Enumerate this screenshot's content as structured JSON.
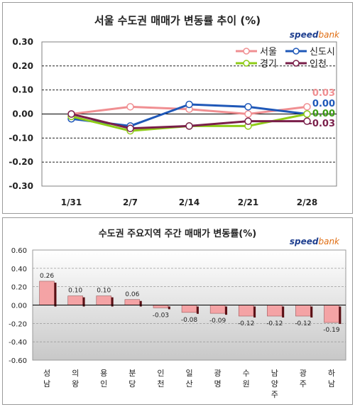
{
  "chart_data": [
    {
      "type": "line",
      "title": "서울 수도권 매매가 변동률 추이 (%)",
      "categories": [
        "1/31",
        "2/7",
        "2/14",
        "2/21",
        "2/28"
      ],
      "ylim": [
        -0.3,
        0.3
      ],
      "yticks": [
        "0.30",
        "0.20",
        "0.10",
        "0.00",
        "-0.10",
        "-0.20",
        "-0.30"
      ],
      "grid": true,
      "legend_position": "top-right",
      "series": [
        {
          "name": "서울",
          "color": "#f08f92",
          "values": [
            0.0,
            0.03,
            0.02,
            0.0,
            0.03
          ]
        },
        {
          "name": "신도시",
          "color": "#1f58b8",
          "values": [
            -0.02,
            -0.05,
            0.04,
            0.03,
            0.0
          ]
        },
        {
          "name": "경기",
          "color": "#8fcc18",
          "values": [
            -0.01,
            -0.07,
            -0.05,
            -0.05,
            0.0
          ]
        },
        {
          "name": "인천",
          "color": "#7a1f4a",
          "values": [
            0.0,
            -0.06,
            -0.05,
            -0.03,
            -0.03
          ]
        }
      ],
      "end_labels": [
        {
          "text": "0.03",
          "color": "#f08f92"
        },
        {
          "text": "0.00",
          "color": "#1f58b8"
        },
        {
          "text": "0.00",
          "color": "#3a9a10"
        },
        {
          "text": "-0.03",
          "color": "#7a1f4a"
        }
      ]
    },
    {
      "type": "bar",
      "title": "수도권 주요지역 주간 매매가 변동률(%)",
      "categories": [
        "성남",
        "의왕",
        "용인",
        "분당",
        "인천",
        "일산",
        "광명",
        "수원",
        "남양주",
        "광주",
        "하남"
      ],
      "values": [
        0.26,
        0.1,
        0.1,
        0.06,
        -0.03,
        -0.08,
        -0.09,
        -0.12,
        -0.12,
        -0.12,
        -0.19
      ],
      "value_labels": [
        "0.26",
        "0.10",
        "0.10",
        "0.06",
        "-0.03",
        "-0.08",
        "-0.09",
        "-0.12",
        "-0.12",
        "-0.12",
        "-0.19"
      ],
      "ylim": [
        -0.6,
        0.6
      ],
      "yticks": [
        "0.60",
        "0.40",
        "0.20",
        "0.00",
        "-0.20",
        "-0.40",
        "-0.60"
      ],
      "grid": true,
      "bar_color": "#f4a3a5"
    }
  ],
  "brand": {
    "part1": "speed",
    "part2": "bank"
  }
}
